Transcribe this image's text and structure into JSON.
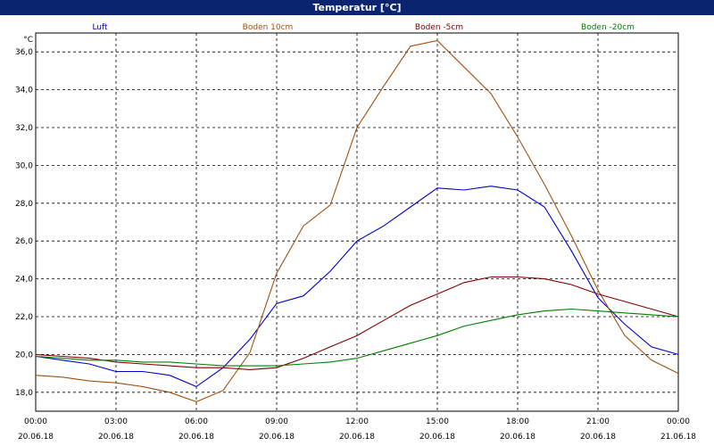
{
  "window": {
    "title": "Temperatur [°C]"
  },
  "colors": {
    "titlebar": "#0a2470",
    "luft": "#0000cc",
    "boden10": "#a05010",
    "boden5": "#800000",
    "boden20": "#008000"
  },
  "chart_data": {
    "type": "line",
    "title": "Temperatur [°C]",
    "ylabel": "°C",
    "xlabel": "",
    "ylim": [
      17,
      37
    ],
    "grid": true,
    "legend_position": "top",
    "yticks": [
      "18,0",
      "20,0",
      "22,0",
      "24,0",
      "26,0",
      "28,0",
      "30,0",
      "32,0",
      "34,0",
      "36,0"
    ],
    "ytick_values": [
      18,
      20,
      22,
      24,
      26,
      28,
      30,
      32,
      34,
      36
    ],
    "xticks": [
      {
        "time": "00:00",
        "date": "20.06.18"
      },
      {
        "time": "03:00",
        "date": "20.06.18"
      },
      {
        "time": "06:00",
        "date": "20.06.18"
      },
      {
        "time": "09:00",
        "date": "20.06.18"
      },
      {
        "time": "12:00",
        "date": "20.06.18"
      },
      {
        "time": "15:00",
        "date": "20.06.18"
      },
      {
        "time": "18:00",
        "date": "20.06.18"
      },
      {
        "time": "21:00",
        "date": "20.06.18"
      },
      {
        "time": "00:00",
        "date": "21.06.18"
      }
    ],
    "x": [
      "00:00",
      "01:00",
      "02:00",
      "03:00",
      "04:00",
      "05:00",
      "06:00",
      "07:00",
      "08:00",
      "09:00",
      "10:00",
      "11:00",
      "12:00",
      "13:00",
      "14:00",
      "15:00",
      "16:00",
      "17:00",
      "18:00",
      "19:00",
      "20:00",
      "21:00",
      "22:00",
      "23:00",
      "24:00"
    ],
    "series": [
      {
        "name": "Luft",
        "color": "#0000cc",
        "values": [
          19.9,
          19.7,
          19.5,
          19.1,
          19.1,
          18.9,
          18.3,
          19.3,
          20.8,
          22.7,
          23.1,
          24.4,
          26.0,
          26.8,
          27.8,
          28.8,
          28.7,
          28.9,
          28.7,
          27.8,
          25.5,
          23.0,
          21.6,
          20.4,
          20.0
        ]
      },
      {
        "name": "Boden 10cm",
        "color": "#a05010",
        "values": [
          18.9,
          18.8,
          18.6,
          18.5,
          18.3,
          18.0,
          17.5,
          18.1,
          20.1,
          24.3,
          26.8,
          27.9,
          32.0,
          34.2,
          36.3,
          36.6,
          35.2,
          33.8,
          31.5,
          29.0,
          26.3,
          23.4,
          21.0,
          19.7,
          19.0
        ]
      },
      {
        "name": "Boden -5cm",
        "color": "#800000",
        "values": [
          20.0,
          19.9,
          19.8,
          19.6,
          19.5,
          19.4,
          19.3,
          19.3,
          19.2,
          19.3,
          19.8,
          20.4,
          21.0,
          21.8,
          22.6,
          23.2,
          23.8,
          24.1,
          24.1,
          24.0,
          23.7,
          23.2,
          22.8,
          22.4,
          22.0
        ]
      },
      {
        "name": "Boden -20cm",
        "color": "#008000",
        "values": [
          19.9,
          19.8,
          19.7,
          19.7,
          19.6,
          19.6,
          19.5,
          19.4,
          19.4,
          19.4,
          19.5,
          19.6,
          19.8,
          20.2,
          20.6,
          21.0,
          21.5,
          21.8,
          22.1,
          22.3,
          22.4,
          22.3,
          22.2,
          22.1,
          22.0
        ]
      }
    ]
  }
}
